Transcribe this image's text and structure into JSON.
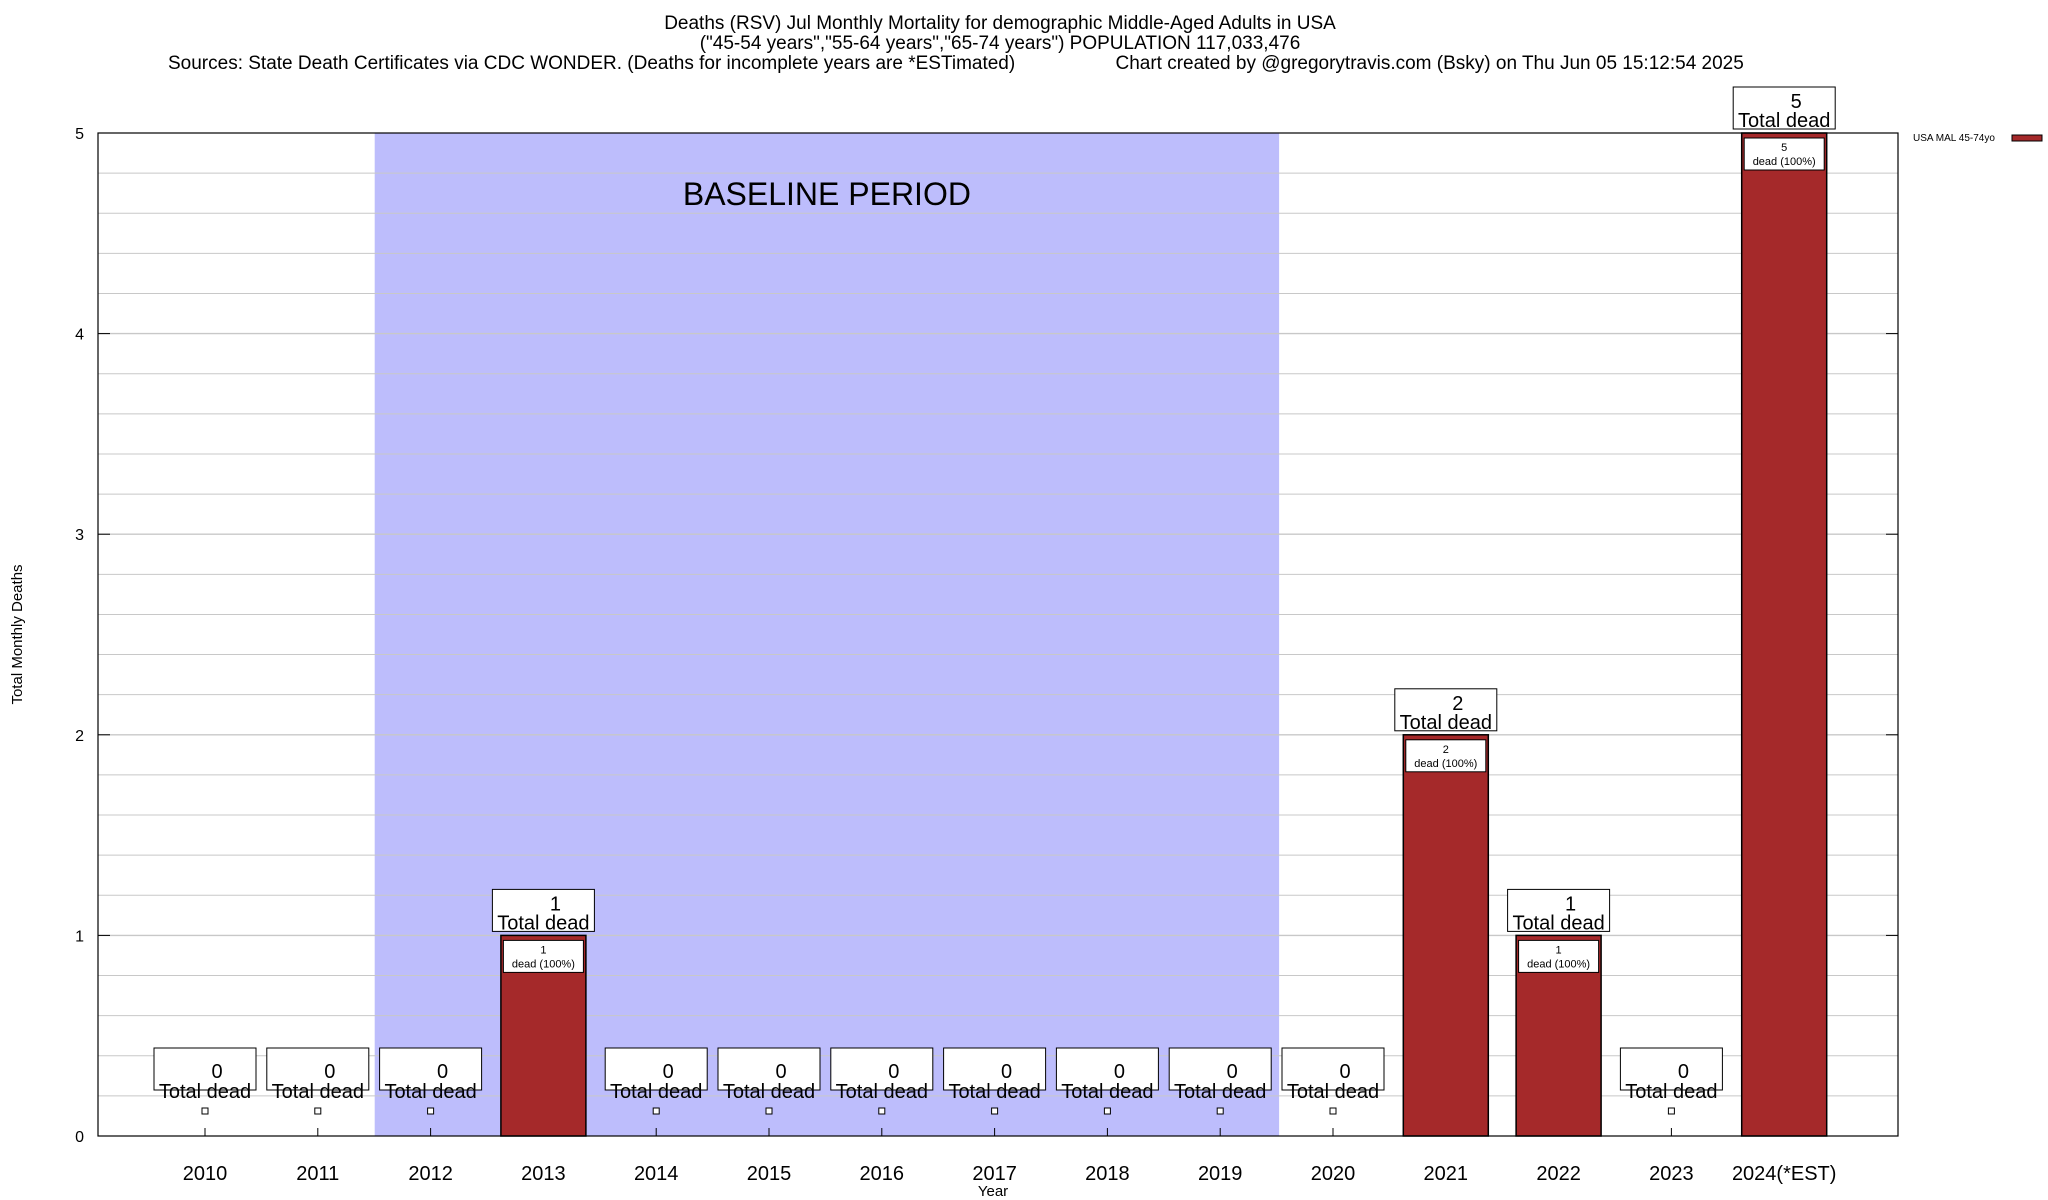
{
  "title": {
    "line1": "Deaths (RSV) Jul Monthly Mortality for demographic Middle-Aged Adults in USA",
    "line2": "(\"45-54 years\",\"55-64 years\",\"65-74 years\") POPULATION 117,033,476",
    "line3_left": "Sources: State Death Certificates via CDC WONDER. (Deaths for incomplete years are *ESTimated)",
    "line3_right": "Chart created by @gregorytravis.com (Bsky) on Thu Jun 05 15:12:54 2025"
  },
  "colors": {
    "bar": "#a5292a",
    "baseline_band": "#bdbdfc",
    "grid": "#c8c8c8"
  },
  "chart_data": {
    "type": "bar",
    "categories": [
      "2010",
      "2011",
      "2012",
      "2013",
      "2014",
      "2015",
      "2016",
      "2017",
      "2018",
      "2019",
      "2020",
      "2021",
      "2022",
      "2023",
      "2024(*EST)"
    ],
    "series": [
      {
        "name": "USA MAL 45-74yo",
        "values": [
          0,
          0,
          0,
          1,
          0,
          0,
          0,
          0,
          0,
          0,
          0,
          2,
          1,
          0,
          5
        ]
      }
    ],
    "xlabel": "Year",
    "ylabel": "Total Monthly Deaths",
    "ylim": [
      0,
      5
    ],
    "yticks": [
      0,
      1,
      2,
      3,
      4,
      5
    ],
    "total_label": "Total dead",
    "bar_label_suffix": "dead (100%)",
    "baseline": {
      "label": "BASELINE PERIOD",
      "from": "2012",
      "to": "2019"
    },
    "grid": true,
    "legend_position": "top-right"
  }
}
